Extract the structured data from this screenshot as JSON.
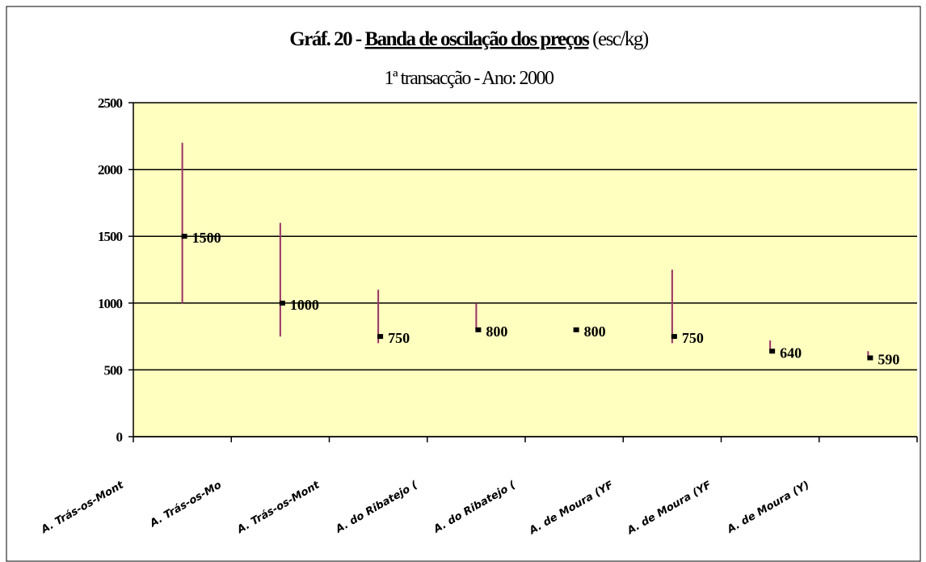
{
  "chart_data": {
    "type": "hlc",
    "title": [
      "Gráf. 20 - ",
      "Banda de oscilação dos preços",
      " (esc/kg)"
    ],
    "subtitle": "1ª transacção - Ano: 2000",
    "categories": [
      "A. Trás-os-Mont",
      "A. Trás-os-Mo",
      "A. Trás-os-Mont",
      "A. do Ribatejo (",
      "A. do Ribatejo (",
      "A. de Moura (YF",
      "A. de Moura (YF",
      "A. de Moura (Y)"
    ],
    "series": [
      {
        "name": "high",
        "color": "#993366",
        "values": [
          2200,
          1600,
          1100,
          1000,
          800,
          1250,
          720,
          640
        ]
      },
      {
        "name": "low",
        "color": "#993366",
        "values": [
          1000,
          750,
          700,
          800,
          800,
          700,
          640,
          590
        ]
      },
      {
        "name": "close",
        "color": "#000000",
        "values": [
          1500,
          1000,
          750,
          800,
          800,
          750,
          640,
          590
        ]
      }
    ],
    "ylim": [
      0,
      2500
    ],
    "yticks": [
      0,
      500,
      1000,
      1500,
      2000,
      2500
    ],
    "grid": true
  }
}
